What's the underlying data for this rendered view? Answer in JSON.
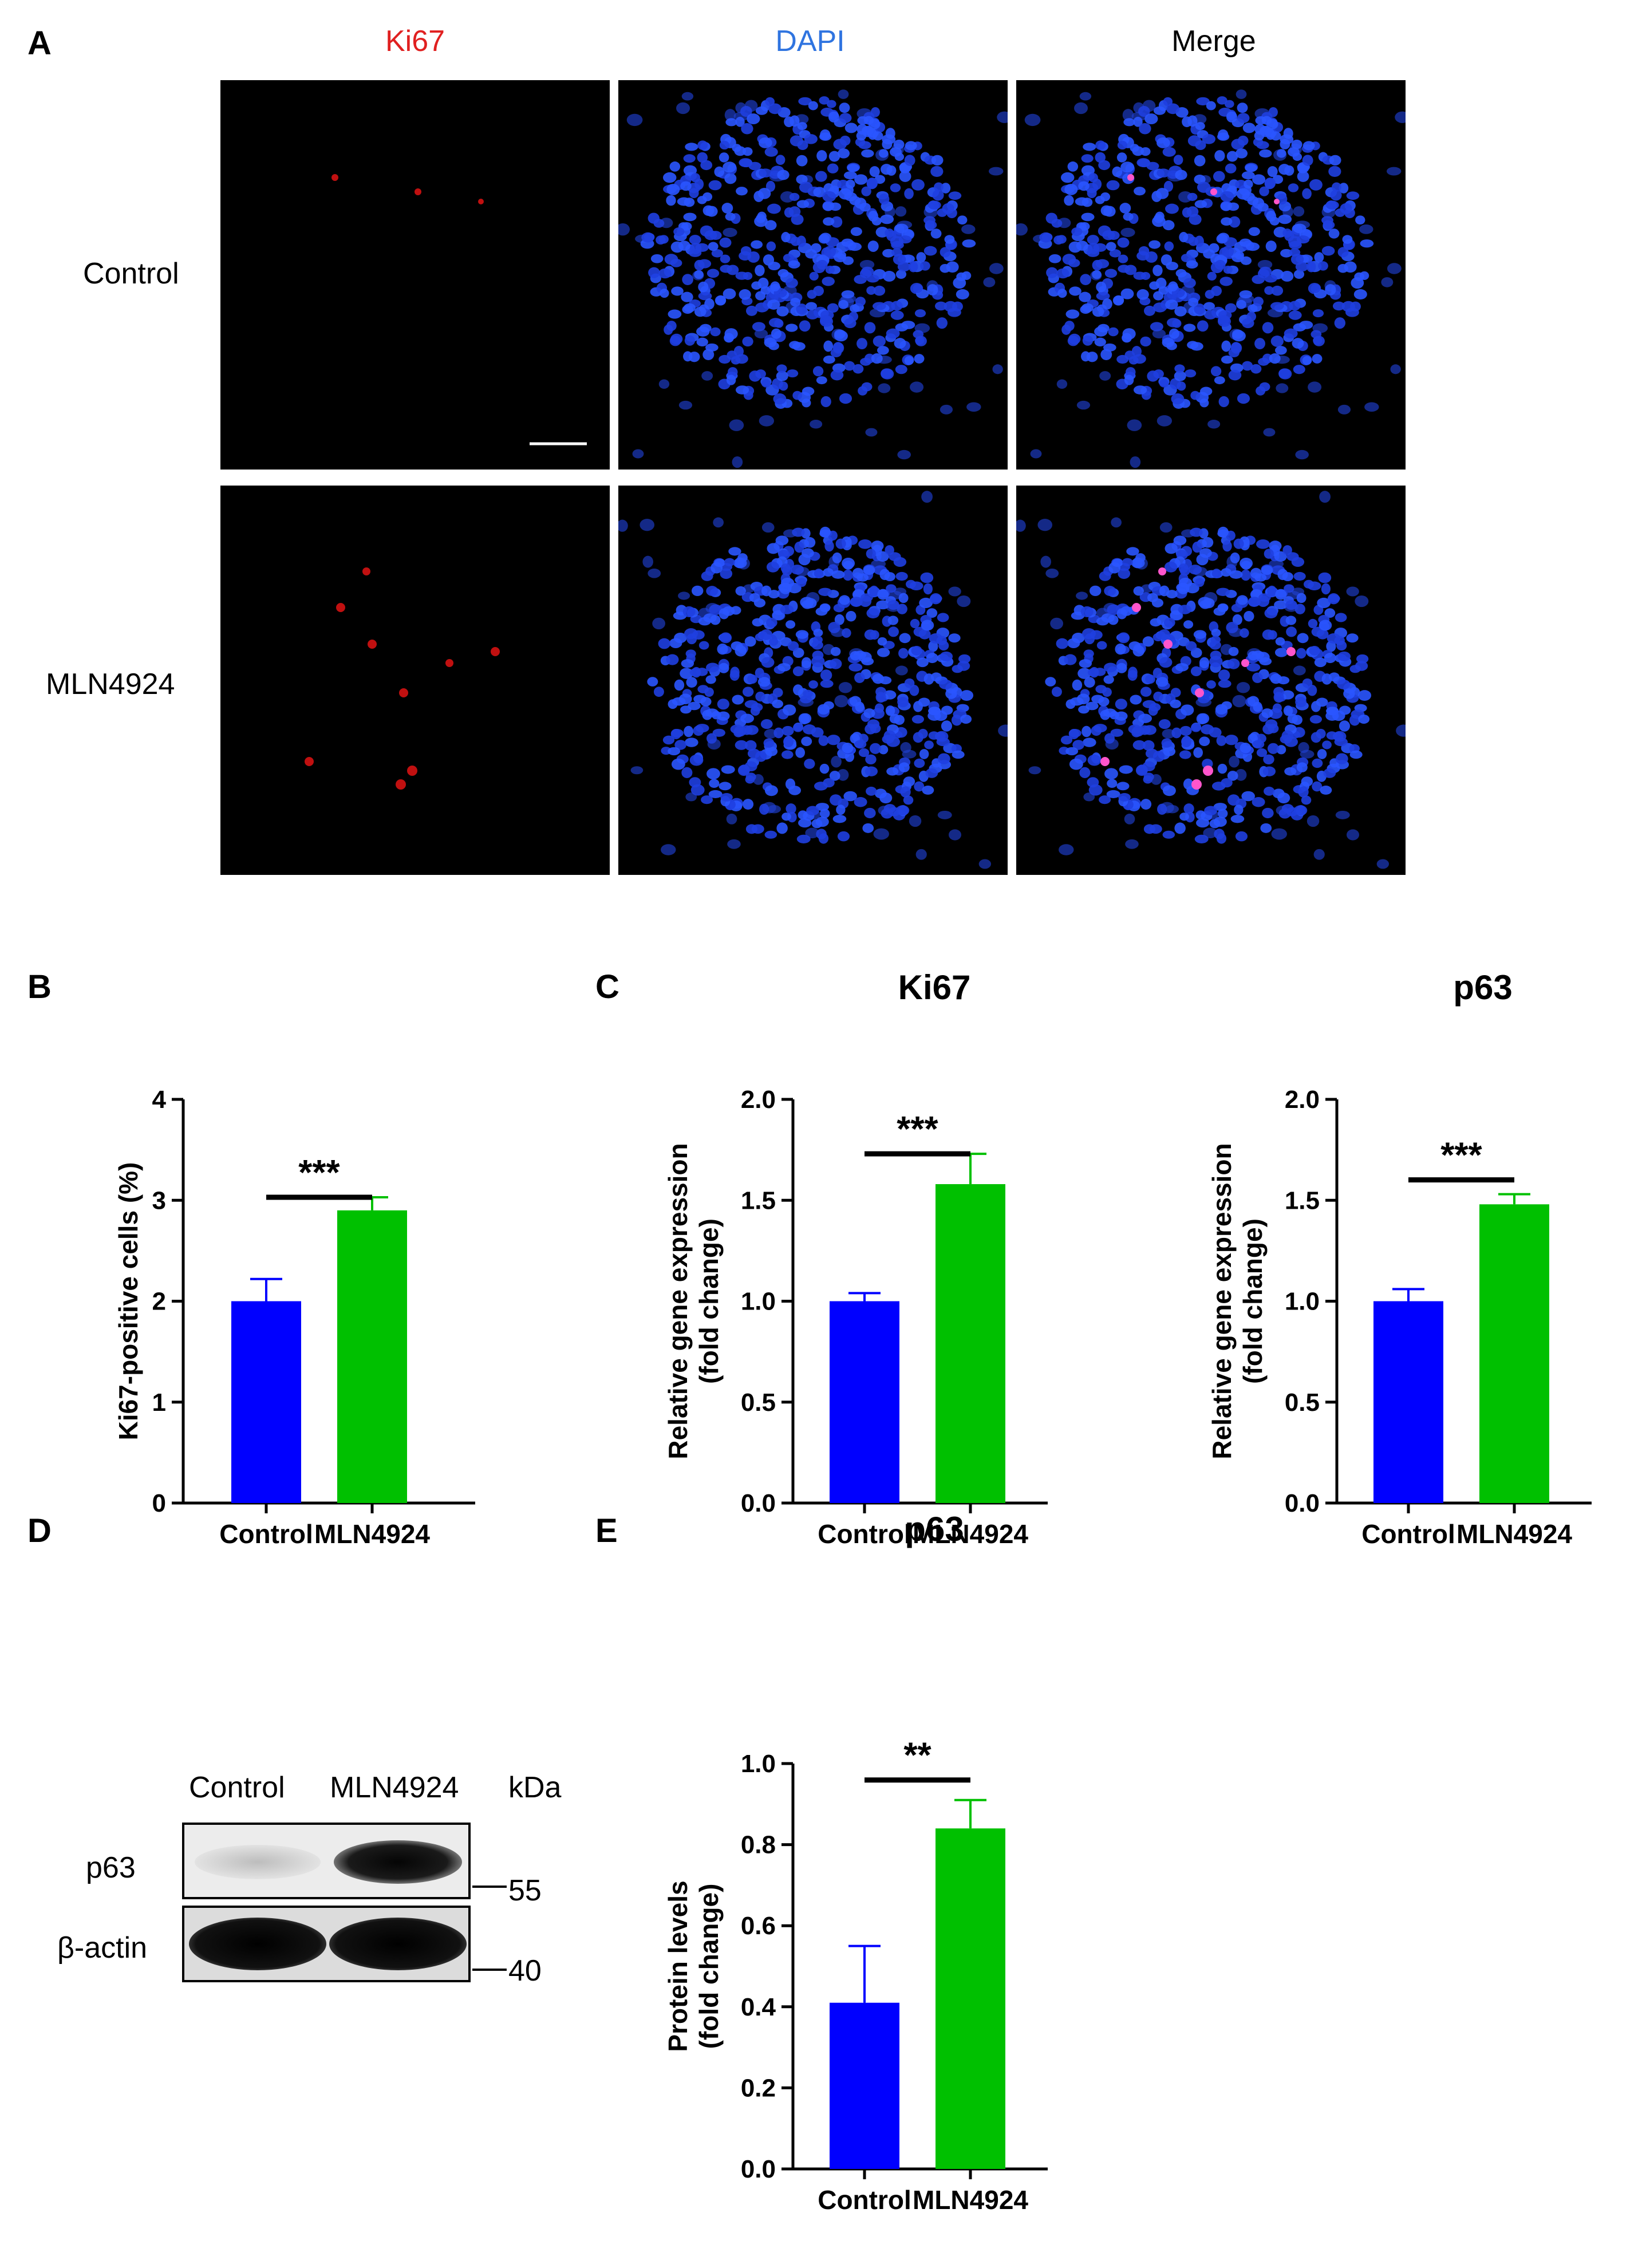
{
  "panels": {
    "a": {
      "letter": "A",
      "columns": [
        "Ki67",
        "DAPI",
        "Merge"
      ],
      "column_colors": [
        "#e02020",
        "#2f74e0",
        "#000000"
      ],
      "rows": [
        "Control",
        "MLN4924"
      ]
    },
    "b": {
      "letter": "B"
    },
    "c": {
      "letter": "C"
    },
    "d": {
      "letter": "D",
      "lanes": [
        "Control",
        "MLN4924"
      ],
      "unit": "kDa",
      "bands": [
        "p63",
        "β-actin"
      ],
      "markers": [
        "55",
        "40"
      ]
    },
    "e": {
      "letter": "E"
    }
  },
  "colors": {
    "control": "#0000ff",
    "mln4924": "#00c000",
    "axis": "#000000"
  },
  "chart_data": [
    {
      "id": "B",
      "type": "bar",
      "title": "",
      "categories": [
        "Control",
        "MLN4924"
      ],
      "values": [
        2.0,
        2.9
      ],
      "errors": [
        0.22,
        0.13
      ],
      "ylabel": "Ki67-positive cells (%)",
      "ylim": [
        0,
        4
      ],
      "yticks": [
        "0",
        "1",
        "2",
        "3",
        "4"
      ],
      "significance": "***"
    },
    {
      "id": "C1",
      "type": "bar",
      "title": "Ki67",
      "categories": [
        "Control",
        "MLN4924"
      ],
      "values": [
        1.0,
        1.58
      ],
      "errors": [
        0.04,
        0.15
      ],
      "ylabel": "Relative gene expression (fold change)",
      "ylim": [
        0,
        2.0
      ],
      "yticks": [
        "0.0",
        "0.5",
        "1.0",
        "1.5",
        "2.0"
      ],
      "significance": "***"
    },
    {
      "id": "C2",
      "type": "bar",
      "title": "p63",
      "categories": [
        "Control",
        "MLN4924"
      ],
      "values": [
        1.0,
        1.48
      ],
      "errors": [
        0.06,
        0.05
      ],
      "ylabel": "Relative gene expression (fold change)",
      "ylim": [
        0,
        2.0
      ],
      "yticks": [
        "0.0",
        "0.5",
        "1.0",
        "1.5",
        "2.0"
      ],
      "significance": "***"
    },
    {
      "id": "E",
      "type": "bar",
      "title": "p63",
      "categories": [
        "Control",
        "MLN4924"
      ],
      "values": [
        0.41,
        0.84
      ],
      "errors": [
        0.14,
        0.07
      ],
      "ylabel": "Protein levels (fold change)",
      "ylim": [
        0,
        1.0
      ],
      "yticks": [
        "0.0",
        "0.2",
        "0.4",
        "0.6",
        "0.8",
        "1.0"
      ],
      "significance": "**"
    }
  ]
}
